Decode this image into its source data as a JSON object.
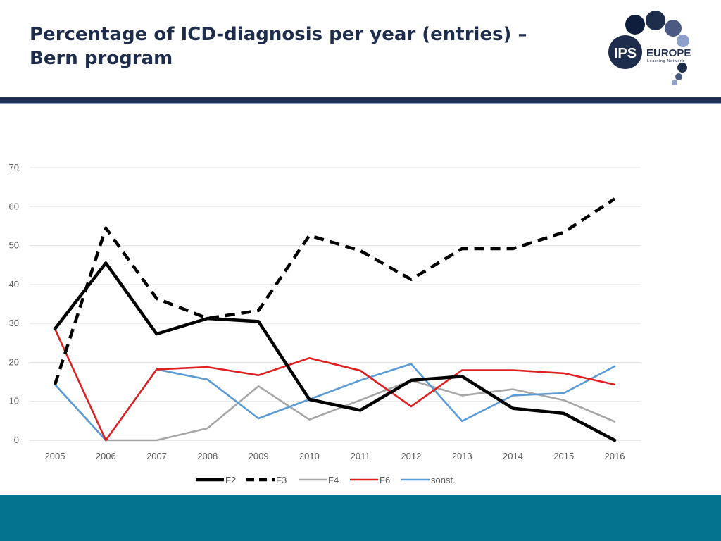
{
  "slide": {
    "title_line1": "Percentage of ICD-diagnosis per year (entries) –",
    "title_line2": "Bern program"
  },
  "logo": {
    "ips_text": "IPS",
    "europe_text": "EUROPE",
    "network_text": "Learning Network",
    "navy_color": "#1f2d4d",
    "mid_color": "#4a5a82",
    "light_color": "#8f9fcc"
  },
  "colors": {
    "header_rule": "#1f3057",
    "footer_band": "#03748f"
  },
  "chart_data": {
    "type": "line",
    "title": "",
    "xlabel": "",
    "ylabel": "",
    "ylim": [
      0,
      70
    ],
    "yticks": [
      0,
      10,
      20,
      30,
      40,
      50,
      60,
      70
    ],
    "grid": true,
    "legend_position": "bottom",
    "categories": [
      "2005",
      "2006",
      "2007",
      "2008",
      "2009",
      "2010",
      "2011",
      "2012",
      "2013",
      "2014",
      "2015",
      "2016"
    ],
    "series": [
      {
        "name": "F2",
        "color": "#000000",
        "style": "solid",
        "weight": "bold",
        "values": [
          28.6,
          45.5,
          27.3,
          31.3,
          30.5,
          10.5,
          7.7,
          15.4,
          16.4,
          8.2,
          6.9,
          0
        ]
      },
      {
        "name": "F3",
        "color": "#000000",
        "style": "dashed",
        "weight": "bold",
        "values": [
          14.3,
          54.5,
          36.4,
          31.3,
          33.3,
          52.6,
          48.7,
          41.3,
          49.2,
          49.2,
          53.4,
          62.0
        ]
      },
      {
        "name": "F4",
        "color": "#a6a6a6",
        "style": "solid",
        "weight": "normal",
        "values": [
          14.3,
          0,
          0,
          3.1,
          13.9,
          5.3,
          10.3,
          15.4,
          11.5,
          13.1,
          10.3,
          4.8
        ]
      },
      {
        "name": "F6",
        "color": "#e02020",
        "style": "solid",
        "weight": "normal",
        "values": [
          28.6,
          0,
          18.2,
          18.8,
          16.7,
          21.1,
          17.9,
          8.7,
          18.0,
          18.0,
          17.2,
          14.3
        ]
      },
      {
        "name": "sonst.",
        "color": "#5b9bd5",
        "style": "solid",
        "weight": "normal",
        "values": [
          14.3,
          0,
          18.2,
          15.6,
          5.6,
          10.5,
          15.4,
          19.6,
          4.9,
          11.5,
          12.1,
          19.0
        ]
      }
    ]
  }
}
